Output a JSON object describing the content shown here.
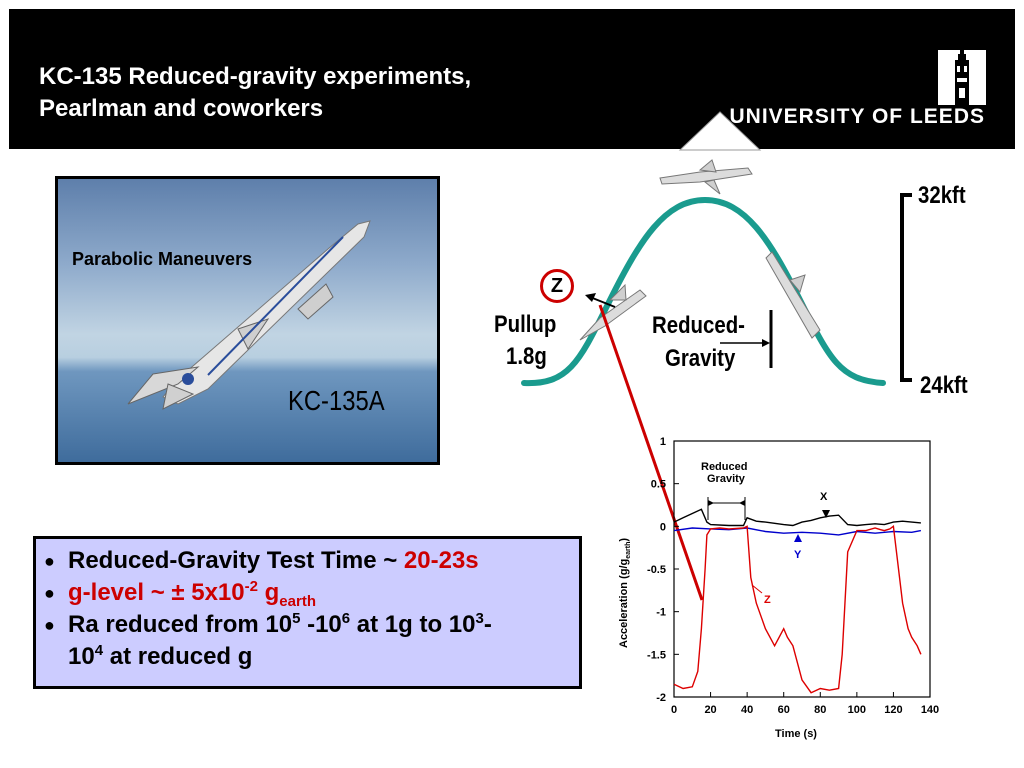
{
  "header": {
    "title_line1": "KC-135 Reduced-gravity experiments,",
    "title_line2": "Pearlman and coworkers",
    "logo_text": "UNIVERSITY OF LEEDS"
  },
  "photo": {
    "caption": "Parabolic Maneuvers",
    "label": "KC-135A"
  },
  "diagram": {
    "z_label": "Z",
    "pullup_line1": "Pullup",
    "pullup_line2": "1.8g",
    "reduced_line1": "Reduced-",
    "reduced_line2": "Gravity",
    "alt_top": "32kft",
    "alt_bottom": "24kft"
  },
  "bullets": {
    "b1_text": "Reduced-Gravity Test Time ~ ",
    "b1_value": "20-23s",
    "b2_a": "g-level ~ ± 5x10",
    "b2_exp": "-2",
    "b2_b": " g",
    "b2_sub": "earth",
    "b3_a": "Ra reduced from 10",
    "b3_e1": "5",
    "b3_b": " -10",
    "b3_e2": "6",
    "b3_c": " at 1g to 10",
    "b3_e3": "3",
    "b3_d": "-",
    "b3_line2a": "10",
    "b3_e4": "4",
    "b3_line2b": " at reduced g"
  },
  "chart_data": {
    "type": "line",
    "xlabel": "Time (s)",
    "ylabel": "Acceleration (g/g",
    "ylabel_sub": "earth",
    "ylabel_close": ")",
    "xlim": [
      0,
      140
    ],
    "ylim": [
      -2,
      1
    ],
    "xticks": [
      "0",
      "20",
      "40",
      "60",
      "80",
      "100",
      "120",
      "140"
    ],
    "yticks": [
      "1",
      "0.5",
      "0",
      "-0.5",
      "-1",
      "-1.5",
      "-2"
    ],
    "annotation_reduced_line1": "Reduced",
    "annotation_reduced_line2": "Gravity",
    "series": [
      {
        "name": "X",
        "color": "#000000",
        "x": [
          0,
          5,
          10,
          15,
          18,
          20,
          30,
          38,
          40,
          45,
          50,
          60,
          65,
          70,
          75,
          80,
          85,
          90,
          95,
          100,
          105,
          110,
          115,
          120,
          125,
          130,
          135
        ],
        "y": [
          0.05,
          0.1,
          0.15,
          0.2,
          0.05,
          0.02,
          0.01,
          0.01,
          0.1,
          0.06,
          0.05,
          0.02,
          0.01,
          0.05,
          0.07,
          0.1,
          0.12,
          0.13,
          0.02,
          0.01,
          0.02,
          0.03,
          0.02,
          0.05,
          0.06,
          0.05,
          0.04
        ]
      },
      {
        "name": "Y",
        "color": "#0000cc",
        "x": [
          0,
          10,
          20,
          30,
          40,
          50,
          60,
          70,
          80,
          90,
          100,
          110,
          120,
          130,
          135
        ],
        "y": [
          -0.05,
          -0.02,
          -0.03,
          -0.04,
          -0.02,
          -0.06,
          -0.08,
          -0.07,
          -0.08,
          -0.1,
          -0.06,
          -0.08,
          -0.06,
          -0.07,
          -0.05
        ]
      },
      {
        "name": "Z",
        "color": "#dd0000",
        "x": [
          0,
          5,
          10,
          13,
          15,
          17,
          18,
          20,
          25,
          30,
          38,
          40,
          42,
          45,
          50,
          55,
          60,
          62,
          65,
          70,
          75,
          80,
          85,
          90,
          92,
          95,
          100,
          105,
          110,
          113,
          115,
          118,
          120,
          125,
          128,
          130,
          133,
          135
        ],
        "y": [
          -1.85,
          -1.9,
          -1.88,
          -1.7,
          -1.2,
          -0.5,
          -0.1,
          -0.03,
          -0.02,
          -0.03,
          -0.02,
          0.0,
          -0.6,
          -0.9,
          -1.2,
          -1.4,
          -1.2,
          -1.3,
          -1.4,
          -1.8,
          -1.95,
          -1.9,
          -1.92,
          -1.9,
          -1.5,
          -0.3,
          -0.05,
          -0.05,
          -0.02,
          -0.04,
          -0.05,
          -0.03,
          0.0,
          -0.9,
          -1.2,
          -1.3,
          -1.4,
          -1.5
        ]
      }
    ]
  }
}
